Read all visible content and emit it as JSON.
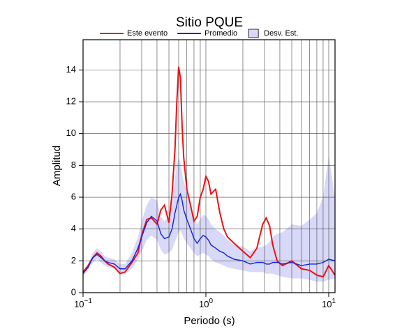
{
  "chart_data": {
    "type": "line",
    "title": "Sitio PQUE",
    "x_label": "Periodo (s)",
    "y_label": "Amplitud",
    "xlog": true,
    "grid": true,
    "xlim": [
      0.1,
      11.25
    ],
    "ylim": [
      0,
      15.9
    ],
    "xticks": [
      {
        "value": 0.1,
        "label": "10",
        "exponent": "−1"
      },
      {
        "value": 1,
        "label": "10",
        "exponent": "0"
      },
      {
        "value": 10,
        "label": "10",
        "exponent": "1"
      }
    ],
    "xgrid": [
      0.2,
      0.3,
      0.4,
      0.5,
      0.6,
      0.7,
      0.8,
      0.9,
      2,
      3,
      4,
      5,
      6,
      7,
      8,
      9
    ],
    "yticks": [
      0,
      2,
      4,
      6,
      8,
      10,
      12,
      14
    ],
    "x": [
      0.1,
      0.11,
      0.12,
      0.13,
      0.14,
      0.15,
      0.16,
      0.18,
      0.2,
      0.22,
      0.25,
      0.28,
      0.3,
      0.33,
      0.36,
      0.4,
      0.43,
      0.46,
      0.5,
      0.53,
      0.56,
      0.58,
      0.6,
      0.62,
      0.64,
      0.66,
      0.7,
      0.75,
      0.8,
      0.85,
      0.9,
      0.95,
      1.0,
      1.05,
      1.1,
      1.2,
      1.3,
      1.4,
      1.5,
      1.7,
      2.0,
      2.3,
      2.6,
      2.9,
      3.1,
      3.3,
      3.5,
      3.8,
      4.2,
      5,
      6,
      7,
      8,
      9,
      10,
      11.25
    ],
    "band": {
      "name": "Desv. Est.",
      "color": "#d8d8f8",
      "upper": [
        1.4,
        1.8,
        2.5,
        2.8,
        2.6,
        2.3,
        2.2,
        2.1,
        1.8,
        1.8,
        2.5,
        3.5,
        4.5,
        5.5,
        6.0,
        5.8,
        4.8,
        4.5,
        4.8,
        5.6,
        7.2,
        8.0,
        8.5,
        8.2,
        7.5,
        7.0,
        6.3,
        5.5,
        4.7,
        4.3,
        4.6,
        4.9,
        4.8,
        4.6,
        4.3,
        4.0,
        3.8,
        3.6,
        3.3,
        3.0,
        2.9,
        2.6,
        2.8,
        2.9,
        3.0,
        3.2,
        3.5,
        3.7,
        3.8,
        4.3,
        4.2,
        4.6,
        5.0,
        6.0,
        8.6,
        6.0
      ],
      "lower": [
        1.0,
        1.4,
        1.9,
        2.1,
        1.9,
        1.7,
        1.6,
        1.5,
        1.2,
        1.2,
        1.5,
        2.1,
        2.6,
        3.3,
        3.6,
        3.3,
        2.7,
        2.4,
        2.5,
        2.7,
        3.2,
        3.5,
        3.8,
        3.9,
        3.7,
        3.4,
        3.1,
        2.8,
        2.5,
        2.3,
        2.4,
        2.5,
        2.4,
        2.3,
        2.1,
        1.9,
        1.8,
        1.7,
        1.6,
        1.5,
        1.4,
        1.3,
        1.3,
        1.3,
        1.2,
        1.2,
        1.2,
        1.1,
        1.0,
        0.9,
        0.9,
        0.8,
        0.7,
        0.7,
        0.8,
        0.9
      ]
    },
    "series": [
      {
        "name": "Este evento",
        "color": "#ee1111",
        "values": [
          1.3,
          1.7,
          2.2,
          2.5,
          2.3,
          2.0,
          1.8,
          1.6,
          1.2,
          1.3,
          1.9,
          2.5,
          3.6,
          4.6,
          4.7,
          4.3,
          5.2,
          5.5,
          4.4,
          6.2,
          9.0,
          12.0,
          14.2,
          13.5,
          10.5,
          8.5,
          6.5,
          5.5,
          4.5,
          4.8,
          6.0,
          6.5,
          7.3,
          7.0,
          6.2,
          6.5,
          5.0,
          4.0,
          3.5,
          3.1,
          2.6,
          2.2,
          2.8,
          4.3,
          4.7,
          4.2,
          3.0,
          2.0,
          1.7,
          2.0,
          1.5,
          1.4,
          1.1,
          1.0,
          1.7,
          1.1
        ]
      },
      {
        "name": "Promedio",
        "color": "#1122dd",
        "values": [
          1.2,
          1.6,
          2.2,
          2.4,
          2.2,
          2.0,
          1.9,
          1.8,
          1.5,
          1.5,
          2.0,
          2.8,
          3.5,
          4.4,
          4.8,
          4.5,
          3.7,
          3.4,
          3.5,
          4.0,
          5.0,
          5.5,
          6.0,
          6.2,
          5.8,
          5.2,
          4.6,
          4.0,
          3.4,
          3.1,
          3.4,
          3.6,
          3.5,
          3.3,
          3.0,
          2.8,
          2.6,
          2.5,
          2.3,
          2.1,
          2.0,
          1.8,
          1.9,
          1.9,
          1.8,
          1.8,
          1.9,
          1.9,
          1.8,
          1.9,
          1.7,
          1.8,
          1.8,
          1.9,
          2.1,
          2.0
        ]
      }
    ]
  }
}
